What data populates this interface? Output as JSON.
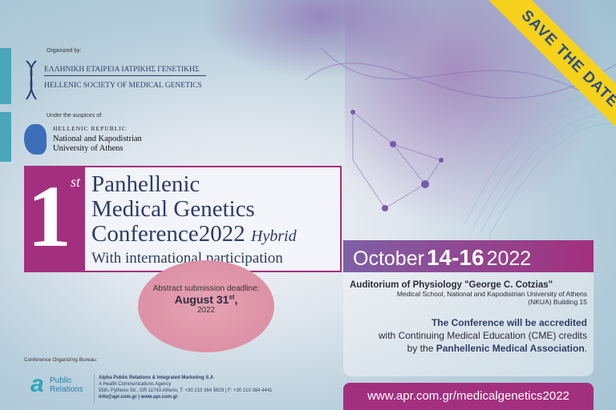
{
  "save_the_date": "SAVE THE DATE",
  "organized_by": {
    "label": "Organized by:",
    "greek_name": "ΕΛΛΗΝΙΚΗ ΕΤΑΙΡΕΙΑ ΙΑΤΡΙΚΗΣ ΓΕΝΕΤΙΚΗΣ",
    "english_name": "HELLENIC SOCIETY OF MEDICAL GENETICS"
  },
  "auspices": {
    "label": "Under the auspices of:",
    "line1": "HELLENIC REPUBLIC",
    "line2": "National and Kapodistrian",
    "line3": "University of Athens"
  },
  "title": {
    "number": "1",
    "ordinal": "st",
    "line1": "Panhellenic",
    "line2": "Medical Genetics",
    "line3": "Conference",
    "year": "2022",
    "hybrid": "Hybrid",
    "line4": "With international participation"
  },
  "date": {
    "month": "October",
    "days": "14-16",
    "year": "2022"
  },
  "abstract": {
    "label": "Abstract submission deadline:",
    "date": "August 31",
    "ordinal": "st",
    "comma": ",",
    "year": "2022"
  },
  "venue": {
    "name": "Auditorium of Physiology \"George C. Cotzias\"",
    "line2": "Medical School, National and Kapodistrian University of Athens",
    "line3": "(NKUA) Building 15"
  },
  "accreditation": {
    "bold1": "The Conference will be accredited",
    "line2": "with Continuing Medical Education (CME) credits",
    "pre3": "by the ",
    "bold3": "Panhellenic Medical Association",
    "post3": "."
  },
  "bureau": {
    "label": "Conference Organizing Bureau:",
    "logo_text": "Public Relations",
    "company": "Alpha Public Relations & Integrated Marketing S.A",
    "tagline": "A Health Communications Agency",
    "address": "55th, Pytheou Str., GR 11743 Athens, T: +30 210 364 5629 | F: +30 210 364 4441",
    "contact": "info@apr.com.gr | www.apr.com.gr"
  },
  "url": "www.apr.com.gr/medicalgenetics2022",
  "colors": {
    "magenta": "#a3307e",
    "navy": "#2f3d66",
    "yellow": "#f6d21c",
    "teal": "#4aa6b9"
  }
}
